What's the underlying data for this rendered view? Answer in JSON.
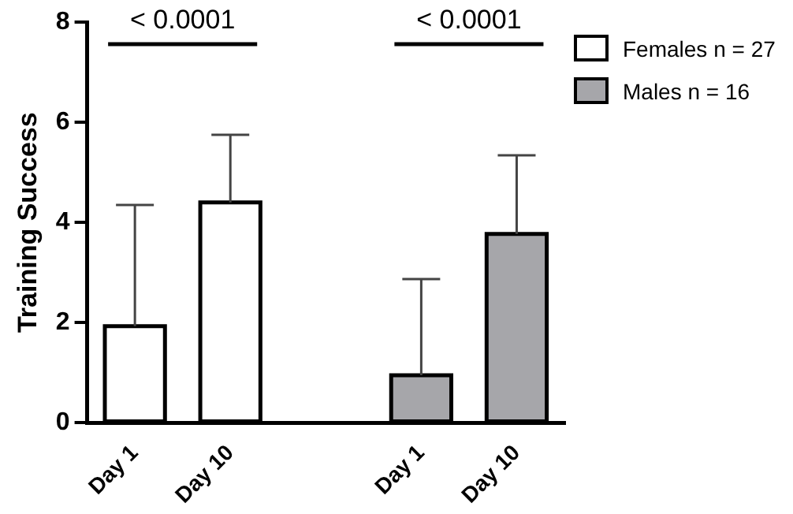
{
  "chart_data": {
    "type": "bar",
    "ylabel": "Training Success",
    "categories": [
      "Day 1",
      "Day 10",
      null,
      "Day 1",
      "Day 10"
    ],
    "series": [
      {
        "name": "Females n = 27",
        "color": "#ffffff",
        "values": [
          1.93,
          4.4,
          null,
          null,
          null
        ],
        "errors": [
          [
            1.93,
            4.35
          ],
          [
            4.4,
            5.75
          ],
          null,
          null,
          null
        ]
      },
      {
        "name": "Males n = 16",
        "color": "#a6a6aa",
        "values": [
          null,
          null,
          null,
          0.95,
          3.77
        ],
        "errors": [
          null,
          null,
          null,
          [
            0.95,
            2.87
          ],
          [
            3.77,
            5.34
          ]
        ]
      }
    ],
    "ylim": [
      0,
      8
    ],
    "yticks": [
      0,
      2,
      4,
      6,
      8
    ],
    "grid": false,
    "legend": "right",
    "annotations": [
      "< 0.0001",
      "< 0.0001"
    ]
  }
}
